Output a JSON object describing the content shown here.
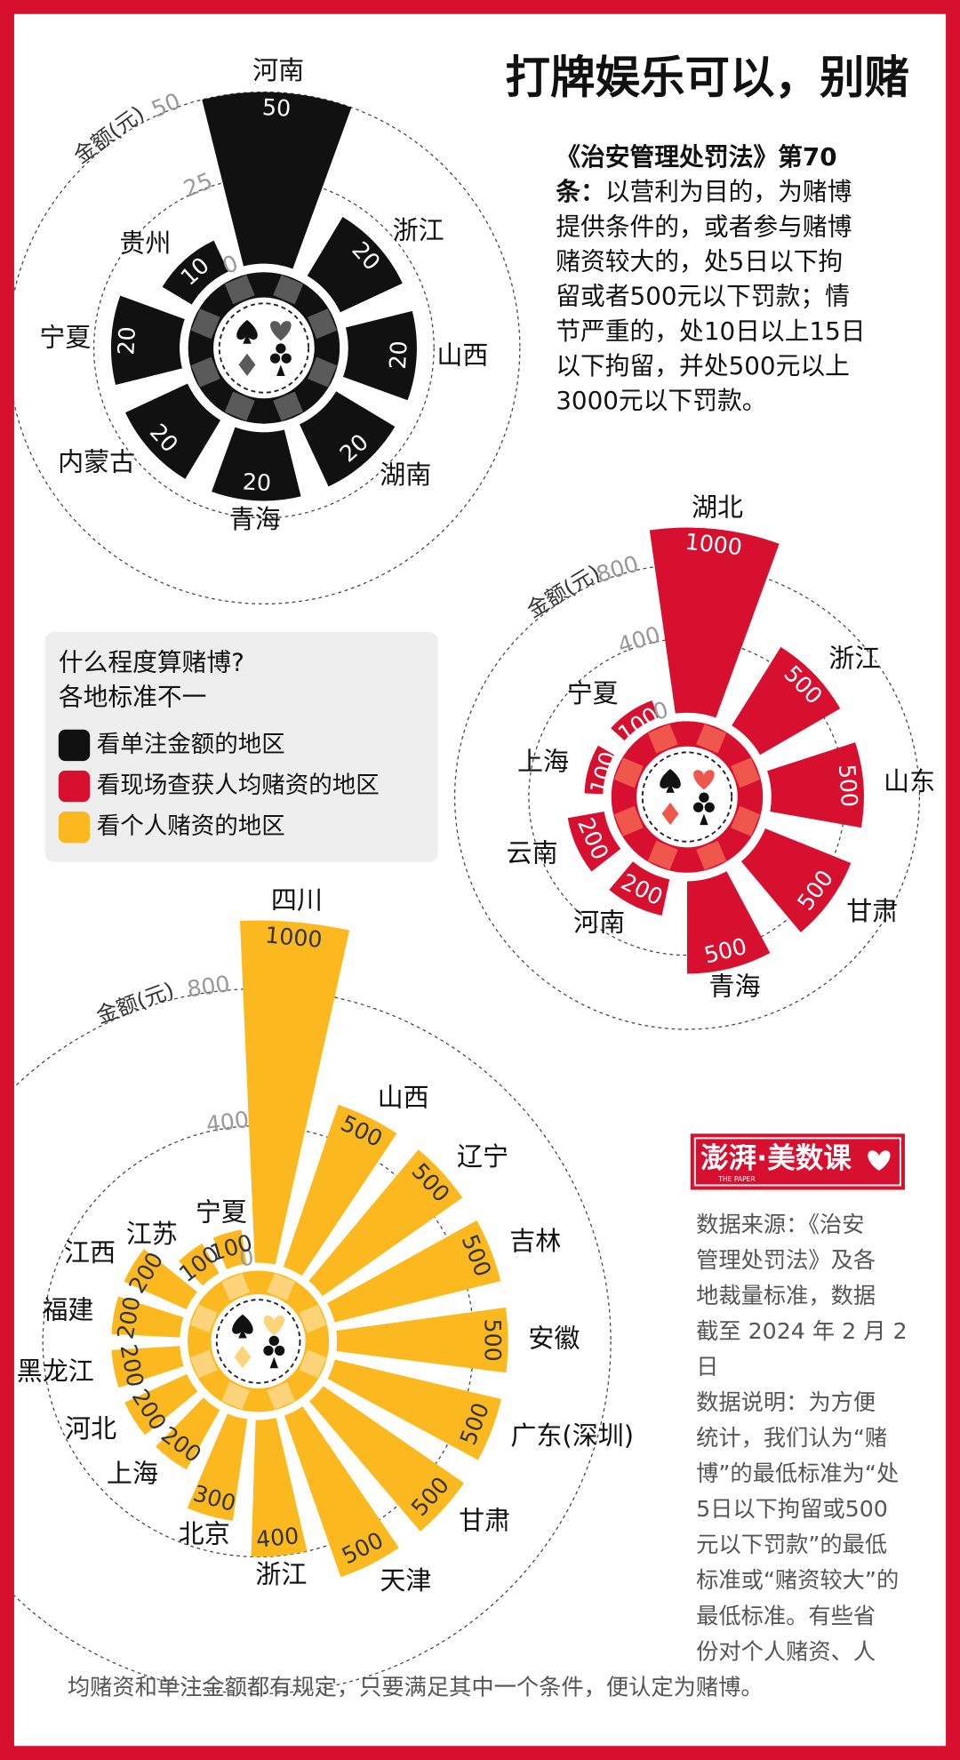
{
  "title": "打牌娱乐可以，别赌",
  "law": {
    "heading": [
      "《治安管理处罚法》第70",
      "条："
    ],
    "lines": [
      "以营利为目的，为赌博",
      "提供条件的，或者参与赌博",
      "赌资较大的，处5日以下拘",
      "留或者500元以下罚款；情",
      "节严重的，处10日以上15日",
      "以下拘留，并处500元以上",
      "3000元以下罚款。"
    ]
  },
  "legend": {
    "title": [
      "什么程度算赌博?",
      "各地标准不一"
    ]
  },
  "logo": {
    "text": "澎湃·美数课",
    "sub": "THE PAPER"
  },
  "notes": [
    "数据来源：《治安",
    "管理处罚法》及各",
    "地裁量标准，数据",
    "截至 2024 年 2 月 2",
    "日",
    "数据说明：为方便",
    "统计，我们认为“赌",
    "博”的最低标准为“处",
    "5日以下拘留或500",
    "元以下罚款”的最低",
    "标准或“赌资较大”的",
    "最低标准。有些省",
    "份对个人赌资、人",
    "均赌资和单注金额都有规定，只要满足其中一个条件，便认定为赌博。"
  ],
  "chart_data": [
    {
      "type": "radial_bar",
      "name": "看单注金额的地区",
      "color": "#111111",
      "accent_color": "#5a5a5a",
      "label_color": "#ffffff",
      "axis_label": "金额(元)",
      "categories": [
        "河南",
        "浙江",
        "山西",
        "湖南",
        "青海",
        "内蒙古",
        "宁夏",
        "贵州"
      ],
      "values": [
        50,
        20,
        20,
        20,
        20,
        20,
        20,
        10
      ],
      "rlim": [
        0,
        50
      ],
      "rticks": [
        0,
        25,
        50
      ]
    },
    {
      "type": "radial_bar",
      "name": "看现场查获人均赌资的地区",
      "color": "#d8102f",
      "accent_color": "#f0574c",
      "label_color": "#ffffff",
      "axis_label": "金额(元)",
      "categories": [
        "湖北",
        "浙江",
        "山东",
        "甘肃",
        "青海",
        "河南",
        "云南",
        "上海",
        "宁夏"
      ],
      "values": [
        1000,
        500,
        500,
        500,
        500,
        200,
        200,
        100,
        100
      ],
      "rlim": [
        0,
        1000
      ],
      "rticks": [
        0,
        400,
        800
      ]
    },
    {
      "type": "radial_bar",
      "name": "看个人赌资的地区",
      "color": "#fbb91f",
      "accent_color": "#fdd47a",
      "label_color": "#333333",
      "axis_label": "金额(元)",
      "categories": [
        "四川",
        "山西",
        "辽宁",
        "吉林",
        "安徽",
        "广东(深圳)",
        "甘肃",
        "天津",
        "浙江",
        "北京",
        "上海",
        "河北",
        "黑龙江",
        "福建",
        "江西",
        "江苏",
        "宁夏"
      ],
      "values": [
        1000,
        500,
        500,
        500,
        500,
        500,
        500,
        500,
        400,
        300,
        200,
        200,
        200,
        200,
        200,
        100,
        100
      ],
      "rlim": [
        0,
        1000
      ],
      "rticks": [
        0,
        400,
        800
      ]
    }
  ]
}
